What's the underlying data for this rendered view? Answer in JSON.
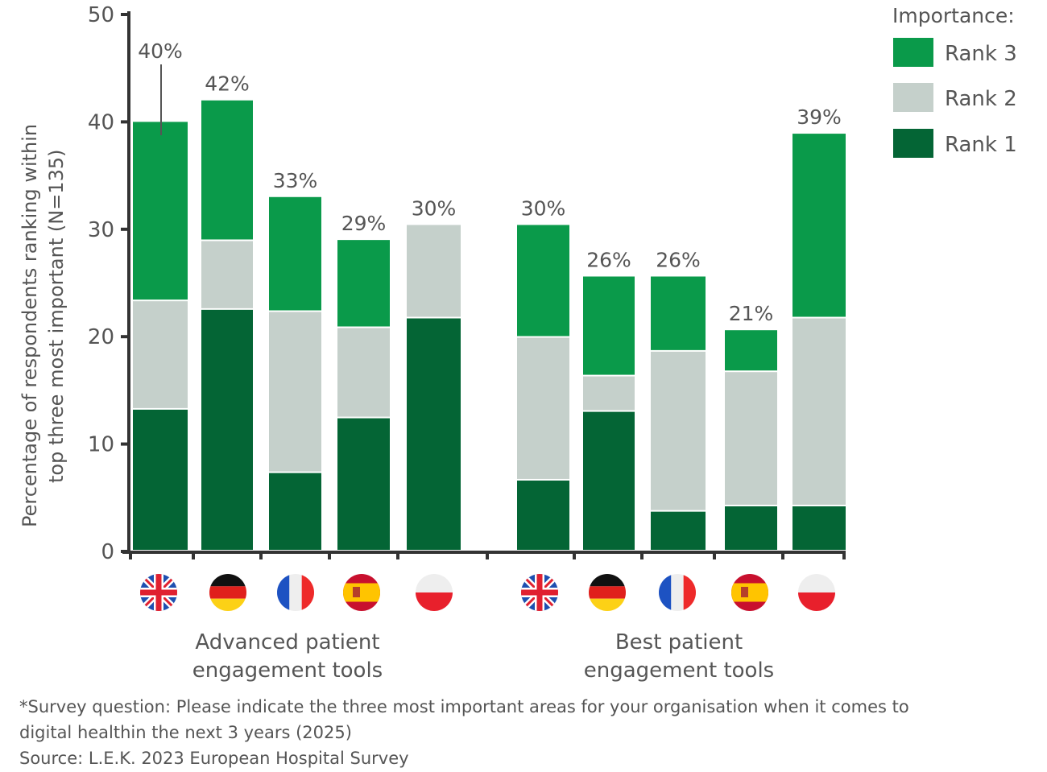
{
  "chart_data": {
    "type": "bar",
    "stacked": true,
    "ylabel": "Percentage of respondents ranking within top three most important (N=135)",
    "ylim": [
      0,
      50
    ],
    "yticks": [
      0,
      10,
      20,
      30,
      40,
      50
    ],
    "grid": false,
    "legend": {
      "title": "Importance:",
      "placement": "top-right"
    },
    "groups": [
      {
        "label": "Advanced patient engagement tools",
        "categories": [
          "UK",
          "Germany",
          "France",
          "Spain",
          "Poland"
        ]
      },
      {
        "label": "Best patient engagement tools",
        "categories": [
          "UK",
          "Germany",
          "France",
          "Spain",
          "Poland"
        ]
      }
    ],
    "series": [
      {
        "name": "Rank 1",
        "color": "#046535",
        "values": [
          13.2,
          22.5,
          7.3,
          12.4,
          21.7,
          6.6,
          13.0,
          3.7,
          4.2,
          4.2
        ]
      },
      {
        "name": "Rank 2",
        "color": "#c5d0cb",
        "values": [
          10.1,
          6.4,
          15.0,
          8.4,
          8.7,
          13.3,
          3.3,
          14.9,
          12.5,
          17.5
        ]
      },
      {
        "name": "Rank 3",
        "color": "#0a9a4a",
        "values": [
          16.7,
          13.1,
          10.7,
          8.2,
          0,
          10.5,
          9.3,
          7.0,
          3.9,
          17.2
        ]
      }
    ],
    "totals_labels": [
      "40%",
      "42%",
      "33%",
      "29%",
      "30%",
      "30%",
      "26%",
      "26%",
      "21%",
      "39%"
    ],
    "flags": [
      "uk-flag",
      "germany-flag",
      "france-flag",
      "spain-flag",
      "poland-flag",
      "uk-flag",
      "germany-flag",
      "france-flag",
      "spain-flag",
      "poland-flag"
    ]
  },
  "footnote": {
    "line1": "*Survey question: Please indicate the three most important areas for your organisation when it comes to",
    "line2": "digital healthin the next 3 years (2025)",
    "source": "Source: L.E.K. 2023 European Hospital Survey"
  }
}
